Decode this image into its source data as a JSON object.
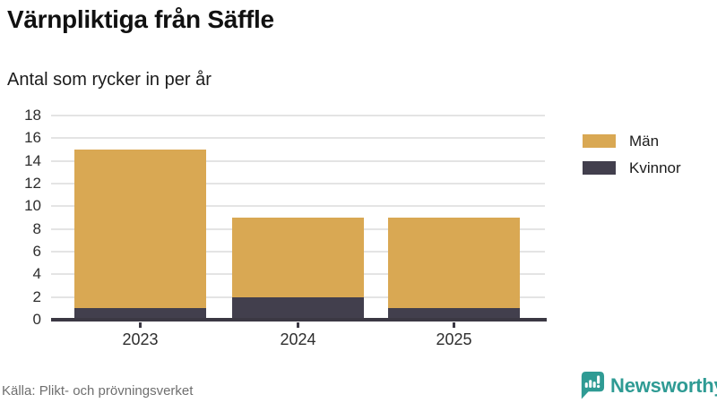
{
  "header": {
    "title": "Värnpliktiga från Säffle",
    "subtitle": "Antal som rycker in per år"
  },
  "chart_data": {
    "type": "bar",
    "stacked": true,
    "title": "Värnpliktiga från Säffle",
    "subtitle": "Antal som rycker in per år",
    "categories": [
      "2023",
      "2024",
      "2025"
    ],
    "series": [
      {
        "name": "Män",
        "color": "#d9a853",
        "values": [
          14,
          7,
          8
        ]
      },
      {
        "name": "Kvinnor",
        "color": "#423f4d",
        "values": [
          1,
          2,
          1
        ]
      }
    ],
    "stack_order_bottom_to_top": [
      "Kvinnor",
      "Män"
    ],
    "totals": [
      15,
      9,
      9
    ],
    "ylim": [
      0,
      18
    ],
    "ytick_step": 2,
    "grid": "horizontal",
    "legend_position": "right"
  },
  "footer": {
    "source": "Källa: Plikt- och prövningsverket",
    "brand": "Newsworthy"
  },
  "colors": {
    "man_gold": "#d9a853",
    "kvinnor_dark": "#423f4d",
    "gridline": "#e4e4e4",
    "axis": "#3b3843",
    "brand_teal": "#2f9b94",
    "source_text": "#6f6f6f"
  }
}
